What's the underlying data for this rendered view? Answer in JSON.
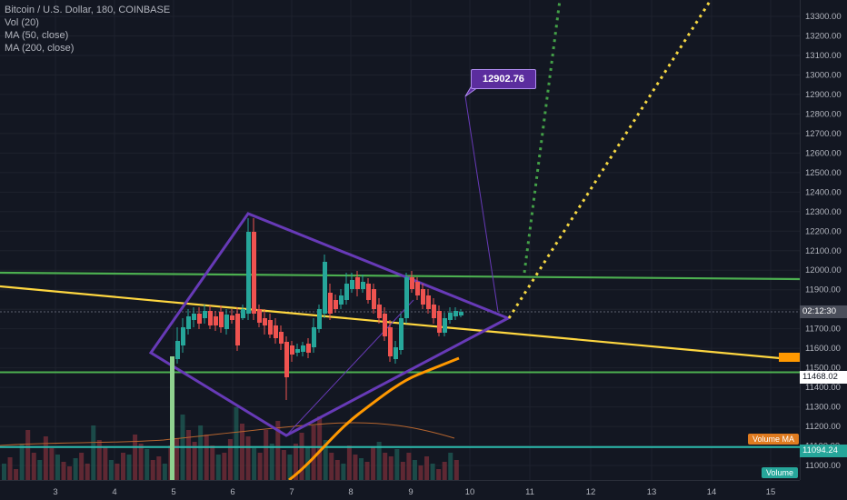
{
  "legend": {
    "symbol_line": "Bitcoin / U.S. Dollar, 180, COINBASE",
    "vol_line": "Vol (20)",
    "ma50_line": "MA (50, close)",
    "ma200_line": "MA (200, close)"
  },
  "price_axis": {
    "ticks": [
      "13300.00",
      "13200.00",
      "13100.00",
      "13000.00",
      "12900.00",
      "12800.00",
      "12700.00",
      "12600.00",
      "12500.00",
      "12400.00",
      "12300.00",
      "12200.00",
      "12100.00",
      "12000.00",
      "11900.00",
      "11800.00",
      "11700.00",
      "11600.00",
      "11500.00",
      "11400.00",
      "11300.00",
      "11200.00",
      "11100.00",
      "11000.00"
    ],
    "current_tag": "02:12:30",
    "support_tag": "11468.02",
    "lower_tag": "11094.24"
  },
  "time_axis": {
    "ticks": [
      "3",
      "4",
      "5",
      "6",
      "7",
      "8",
      "9",
      "10",
      "11",
      "12",
      "13",
      "14",
      "15"
    ]
  },
  "callout": {
    "label": "12902.76"
  },
  "pills": {
    "volume_ma": "Volume MA",
    "volume": "Volume"
  },
  "colors": {
    "background": "#131722",
    "up": "#26a69a",
    "down": "#ef5350",
    "resistance": "#4caf50",
    "trendline": "#ffd740",
    "ma": "#ff9800",
    "diamond": "#673ab7",
    "callout": "#5b2d9e",
    "support_line": "#2bbbad"
  },
  "chart_data": {
    "type": "candlestick",
    "price_range": [
      10940,
      13380
    ],
    "annotations": {
      "resistance_level": 11990,
      "support_level": 11468.02,
      "lower_level": 11094.24,
      "current_level": 11800,
      "target": 12902.76
    }
  }
}
